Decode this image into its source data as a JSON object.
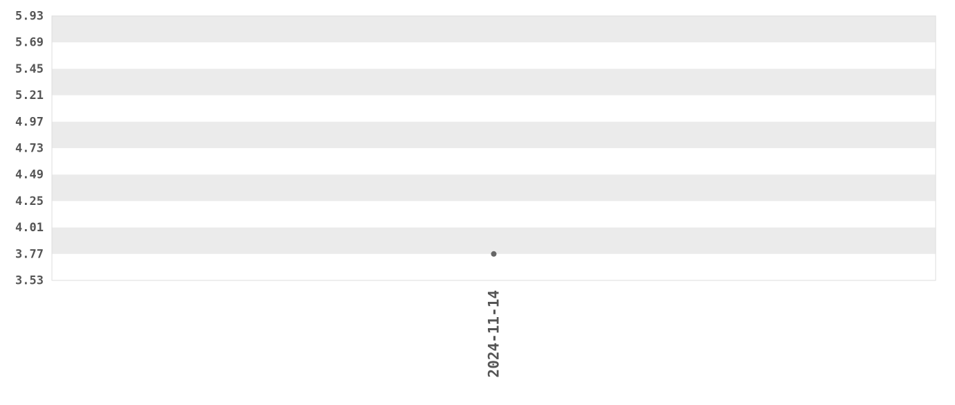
{
  "chart_data": {
    "type": "scatter",
    "title": "",
    "xlabel": "",
    "ylabel": "",
    "ylim": [
      3.53,
      5.93
    ],
    "yticks": [
      "5.93",
      "5.69",
      "5.45",
      "5.21",
      "4.97",
      "4.73",
      "4.49",
      "4.25",
      "4.01",
      "3.77",
      "3.53"
    ],
    "categories": [
      "2024-11-14"
    ],
    "points": [
      {
        "x": "2024-11-14",
        "y": 3.77
      }
    ],
    "grid": "alternating horizontal bands",
    "legend": "none",
    "colors": {
      "band": "#ebebeb",
      "point": "#666666",
      "text": "#555555",
      "border": "#dddddd"
    }
  }
}
